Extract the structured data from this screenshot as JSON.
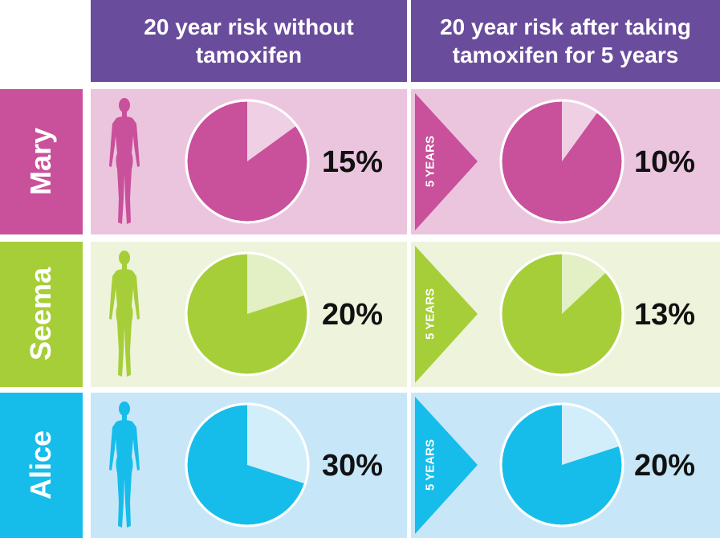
{
  "headers": {
    "without": "20 year risk without tamoxifen",
    "after": "20 year risk after taking tamoxifen for 5 years"
  },
  "rows": [
    {
      "name": "Mary",
      "color": "#c9509a",
      "bg": "#ebc5de",
      "light": "#efcfe4",
      "risk_without": "15%",
      "risk_after": "10%",
      "risk_without_value": 15,
      "risk_after_value": 10,
      "arrow_label": "5 YEARS"
    },
    {
      "name": "Seema",
      "color": "#a6ce38",
      "bg": "#eef3dc",
      "light": "#e3efc4",
      "risk_without": "20%",
      "risk_after": "13%",
      "risk_without_value": 20,
      "risk_after_value": 13,
      "arrow_label": "5 YEARS"
    },
    {
      "name": "Alice",
      "color": "#16bdea",
      "bg": "#c7e7f8",
      "light": "#d2eefb",
      "risk_without": "30%",
      "risk_after": "20%",
      "risk_without_value": 30,
      "risk_after_value": 20,
      "arrow_label": "5 YEARS"
    }
  ],
  "colors": {
    "header": "#6a4c9c"
  },
  "icons": {
    "person": "woman-silhouette-icon",
    "arrow": "arrow-right-icon"
  }
}
